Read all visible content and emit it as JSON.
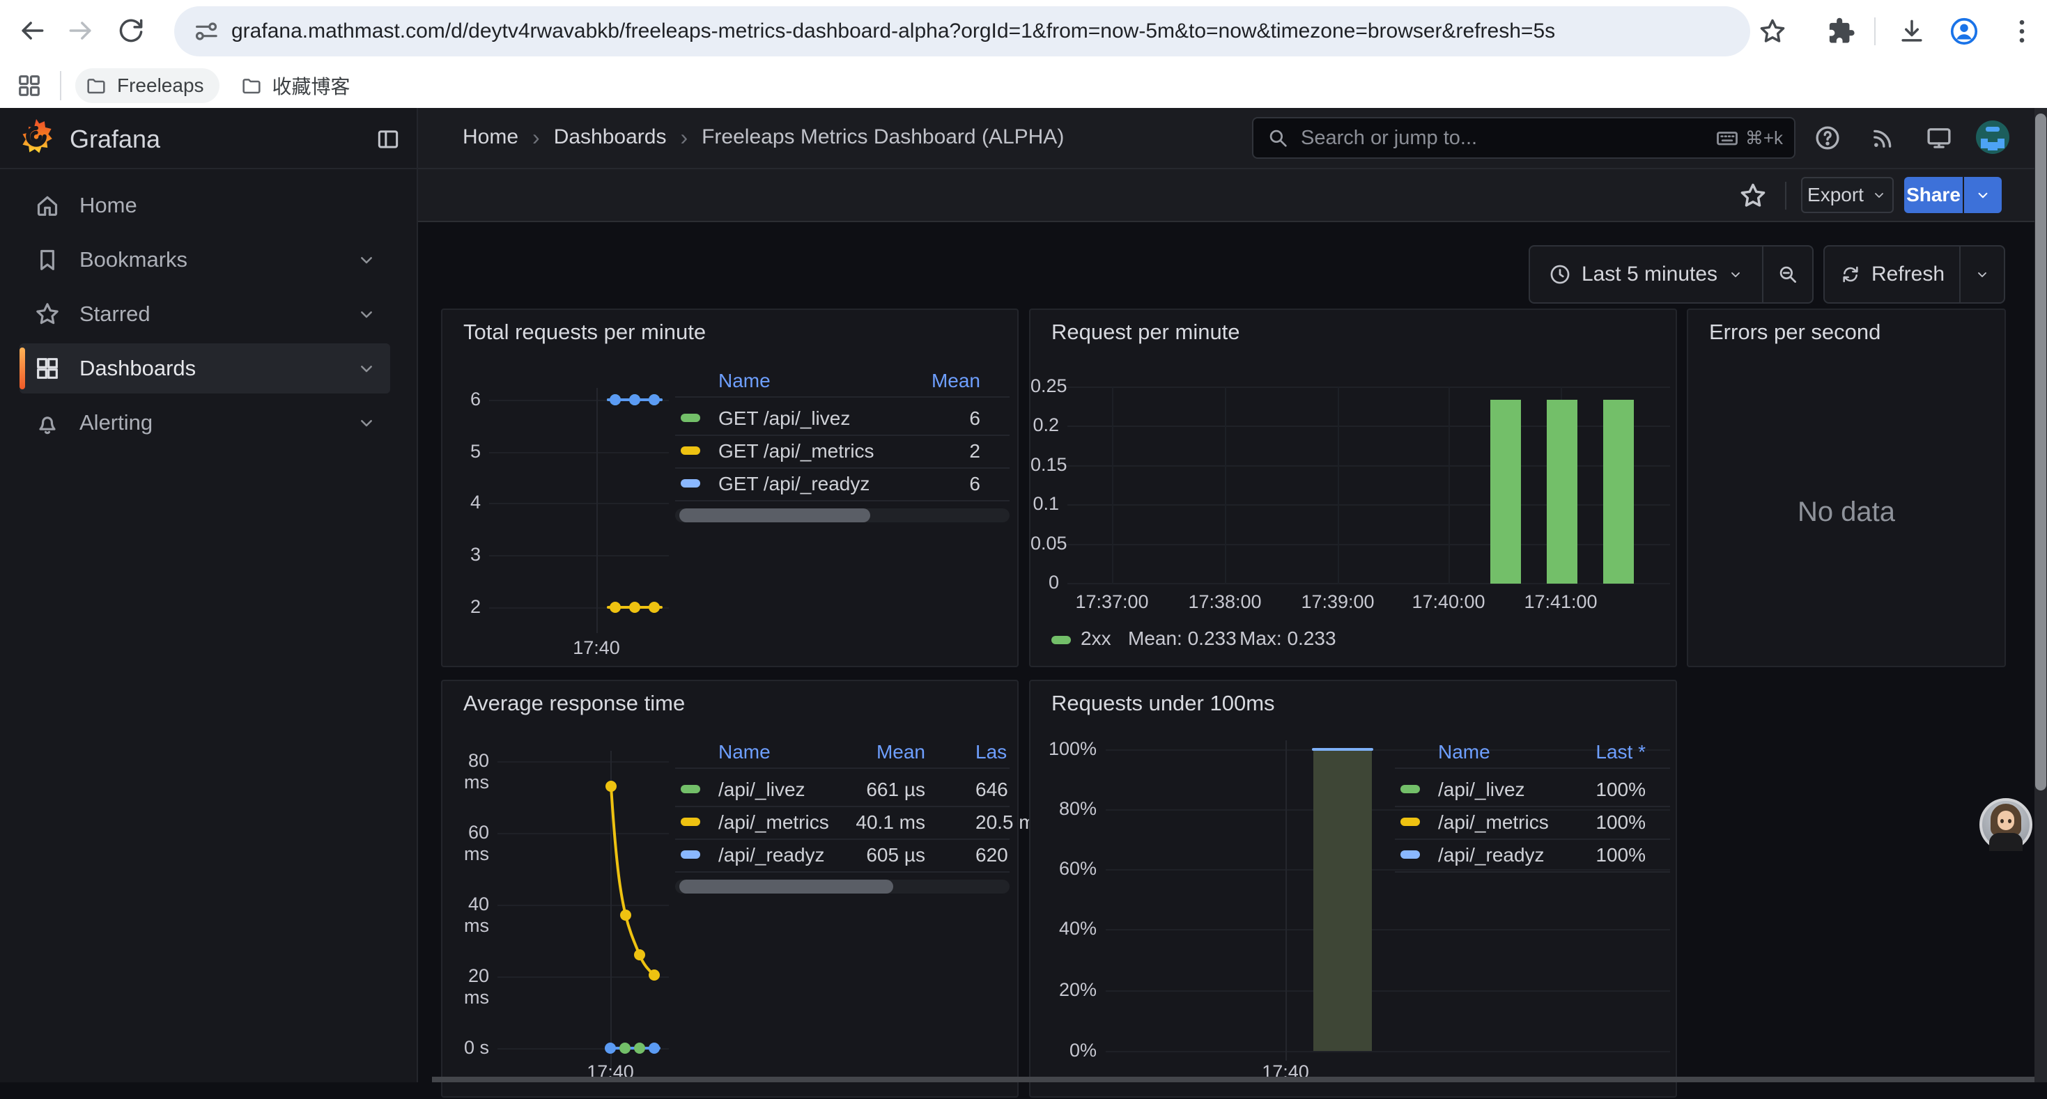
{
  "browser": {
    "url": "grafana.mathmast.com/d/deytv4rwavabkb/freeleaps-metrics-dashboard-alpha?orgId=1&from=now-5m&to=now&timezone=browser&refresh=5s",
    "bookmarks": [
      "Freeleaps",
      "收藏博客"
    ]
  },
  "nav": {
    "brand": "Grafana",
    "breadcrumb": [
      "Home",
      "Dashboards",
      "Freeleaps Metrics Dashboard (ALPHA)"
    ],
    "breadcrumb_separator": "›",
    "search_placeholder": "Search or jump to...",
    "search_shortcut": "⌘+k"
  },
  "sidebar": [
    {
      "label": "Home",
      "icon": "home-icon",
      "expandable": false,
      "active": false
    },
    {
      "label": "Bookmarks",
      "icon": "bookmark-icon",
      "expandable": true,
      "active": false
    },
    {
      "label": "Starred",
      "icon": "star-icon",
      "expandable": true,
      "active": false
    },
    {
      "label": "Dashboards",
      "icon": "dashboards-grid-icon",
      "expandable": true,
      "active": true
    },
    {
      "label": "Alerting",
      "icon": "bell-icon",
      "expandable": true,
      "active": false
    }
  ],
  "actions": {
    "export_label": "Export",
    "share_label": "Share",
    "time_range": "Last 5 minutes",
    "refresh_label": "Refresh"
  },
  "panels": {
    "total_requests": {
      "title": "Total requests per minute",
      "legend": {
        "columns": [
          "Name",
          "Mean"
        ],
        "rows": [
          {
            "name": "GET /api/_livez",
            "mean": "6",
            "color": "#73bf69"
          },
          {
            "name": "GET /api/_metrics",
            "mean": "2",
            "color": "#eec211"
          },
          {
            "name": "GET /api/_readyz",
            "mean": "6",
            "color": "#8ab8ff"
          }
        ]
      },
      "chart_data": {
        "type": "line",
        "y_ticks": [
          "6",
          "5",
          "4",
          "3",
          "2"
        ],
        "ylim": [
          2,
          6
        ],
        "x_tick": "17:40",
        "series": [
          {
            "name": "GET /api/_livez",
            "color": "#73bf69",
            "values": [
              6,
              6,
              6
            ]
          },
          {
            "name": "GET /api/_metrics",
            "color": "#eec211",
            "values": [
              2,
              2,
              2
            ]
          },
          {
            "name": "GET /api/_readyz",
            "color": "#5b9bf3",
            "values": [
              6,
              6,
              6
            ]
          }
        ]
      }
    },
    "request_per_minute": {
      "title": "Request per minute",
      "legend_inline": {
        "name": "2xx",
        "mean": "Mean: 0.233",
        "max": "Max: 0.233",
        "color": "#73bf69"
      },
      "chart_data": {
        "type": "bar",
        "y_ticks": [
          "0.25",
          "0.2",
          "0.15",
          "0.1",
          "0.05",
          "0"
        ],
        "ylim": [
          0,
          0.25
        ],
        "x_ticks": [
          "17:37:00",
          "17:38:00",
          "17:39:00",
          "17:40:00",
          "17:41:00"
        ],
        "series": [
          {
            "name": "2xx",
            "color": "#73bf69",
            "values": [
              0.233,
              0.233,
              0.233
            ]
          }
        ]
      }
    },
    "errors_per_second": {
      "title": "Errors per second",
      "no_data": "No data"
    },
    "avg_response_time": {
      "title": "Average response time",
      "legend": {
        "columns": [
          "Name",
          "Mean",
          "Las"
        ],
        "rows": [
          {
            "name": "/api/_livez",
            "mean": "661 µs",
            "last": "646",
            "color": "#73bf69"
          },
          {
            "name": "/api/_metrics",
            "mean": "40.1 ms",
            "last": "20.5 m",
            "color": "#eec211"
          },
          {
            "name": "/api/_readyz",
            "mean": "605 µs",
            "last": "620",
            "color": "#8ab8ff"
          }
        ]
      },
      "chart_data": {
        "type": "line",
        "y_ticks": [
          "80 ms",
          "60 ms",
          "40 ms",
          "20 ms",
          "0 s"
        ],
        "ylim_ms": [
          0,
          80
        ],
        "x_tick": "17:40",
        "series": [
          {
            "name": "/api/_metrics",
            "color": "#eec211",
            "values_ms": [
              73,
              37,
              26,
              20.3
            ]
          },
          {
            "name": "/api/_livez",
            "color": "#73bf69",
            "values_ms": [
              0.66,
              0.66
            ]
          },
          {
            "name": "/api/_readyz",
            "color": "#5b9bf3",
            "values_ms": [
              0.6,
              0.6,
              0.6,
              0.6
            ]
          }
        ]
      }
    },
    "under_100ms": {
      "title": "Requests under 100ms",
      "legend": {
        "columns": [
          "Name",
          "Last *"
        ],
        "rows": [
          {
            "name": "/api/_livez",
            "last": "100%",
            "color": "#73bf69"
          },
          {
            "name": "/api/_metrics",
            "last": "100%",
            "color": "#eec211"
          },
          {
            "name": "/api/_readyz",
            "last": "100%",
            "color": "#8ab8ff"
          }
        ]
      },
      "chart_data": {
        "type": "area",
        "y_ticks": [
          "100%",
          "80%",
          "60%",
          "40%",
          "20%",
          "0%"
        ],
        "ylim": [
          0,
          100
        ],
        "x_tick": "17:40",
        "fill_color": "#3e4636",
        "top_line_color": "#7eb0f7",
        "series": [
          {
            "name": "/api/_livez",
            "color": "#73bf69",
            "values": [
              100
            ]
          },
          {
            "name": "/api/_metrics",
            "color": "#eec211",
            "values": [
              100
            ]
          },
          {
            "name": "/api/_readyz",
            "color": "#5b9bf3",
            "values": [
              100
            ]
          }
        ]
      }
    }
  }
}
